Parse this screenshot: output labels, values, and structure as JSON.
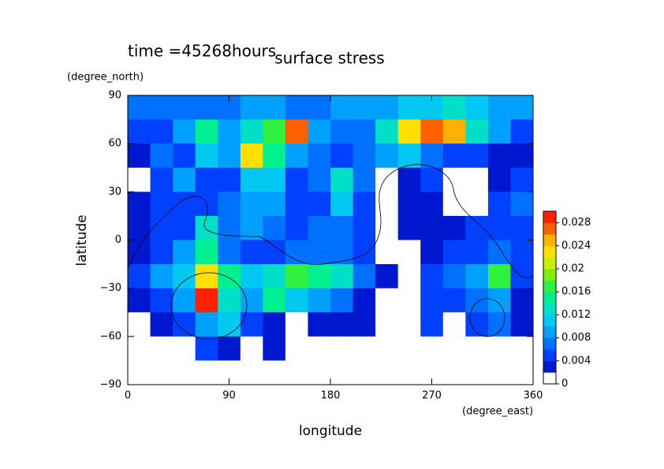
{
  "chart_data": {
    "type": "contour",
    "title": "surface stress",
    "annotation": "time =45268hours",
    "xlabel": "longitude",
    "ylabel": "latitude",
    "xunit": "(degree_east)",
    "yunit": "(degree_north)",
    "xlim": [
      0,
      360
    ],
    "xticks": [
      0,
      90,
      180,
      270,
      360
    ],
    "ylim": [
      -90,
      90
    ],
    "yticks": [
      {
        "value": -90,
        "label": "−90"
      },
      {
        "value": -60,
        "label": "−60"
      },
      {
        "value": -30,
        "label": "−30"
      },
      0,
      30,
      60,
      90
    ],
    "x": [
      10,
      30,
      50,
      70,
      90,
      110,
      130,
      150,
      170,
      190,
      210,
      230,
      250,
      270,
      290,
      310,
      330,
      350
    ],
    "y": [
      82.5,
      67.5,
      52.5,
      37.5,
      22.5,
      7.5,
      -7.5,
      -22.5,
      -37.5,
      -52.5,
      -67.5,
      -82.5
    ],
    "z": [
      [
        0.007,
        0.007,
        0.006,
        0.006,
        0.007,
        0.008,
        0.008,
        0.007,
        0.007,
        0.008,
        0.008,
        0.009,
        0.01,
        0.011,
        0.012,
        0.01,
        0.009,
        0.008
      ],
      [
        0.004,
        0.005,
        0.008,
        0.014,
        0.008,
        0.012,
        0.016,
        0.026,
        0.008,
        0.006,
        0.007,
        0.012,
        0.022,
        0.026,
        0.024,
        0.012,
        0.008,
        0.005
      ],
      [
        0.003,
        0.006,
        0.005,
        0.01,
        0.008,
        0.022,
        0.014,
        0.008,
        0.006,
        0.004,
        0.006,
        0.008,
        0.01,
        0.006,
        0.004,
        0.005,
        0.003,
        0.002
      ],
      [
        0.001,
        0.004,
        0.008,
        0.005,
        0.005,
        0.01,
        0.01,
        0.004,
        0.006,
        0.012,
        0.006,
        0.001,
        0.003,
        0.004,
        0.001,
        0.001,
        0.003,
        0.004
      ],
      [
        0.002,
        0.004,
        0.005,
        0.004,
        0.006,
        0.008,
        0.008,
        0.005,
        0.005,
        0.01,
        0.004,
        0.001,
        0.002,
        0.003,
        0.001,
        0.001,
        0.004,
        0.006
      ],
      [
        0.003,
        0.004,
        0.005,
        0.012,
        0.006,
        0.008,
        0.006,
        0.005,
        0.006,
        0.006,
        0.004,
        0.001,
        0.002,
        0.003,
        0.002,
        0.004,
        0.005,
        0.004
      ],
      [
        0.003,
        0.005,
        0.008,
        0.014,
        0.006,
        0.005,
        0.005,
        0.006,
        0.007,
        0.006,
        0.005,
        0.001,
        0.001,
        0.003,
        0.004,
        0.005,
        0.006,
        0.004
      ],
      [
        0.005,
        0.008,
        0.01,
        0.022,
        0.014,
        0.01,
        0.012,
        0.016,
        0.014,
        0.012,
        0.006,
        0.002,
        0.001,
        0.005,
        0.006,
        0.008,
        0.016,
        0.005
      ],
      [
        0.002,
        0.004,
        0.008,
        0.03,
        0.012,
        0.008,
        0.014,
        0.01,
        0.008,
        0.006,
        0.003,
        0.001,
        0.001,
        0.004,
        0.005,
        0.006,
        0.008,
        0.003
      ],
      [
        0.001,
        0.002,
        0.004,
        0.008,
        0.01,
        0.004,
        0.002,
        0.001,
        0.002,
        0.003,
        0.002,
        0.001,
        0.001,
        0.004,
        0.001,
        0.004,
        0.006,
        0.002
      ],
      [
        0,
        0,
        0.001,
        0.004,
        0.003,
        0.001,
        0.003,
        0.001,
        0,
        0,
        0,
        0,
        0,
        0,
        0,
        0,
        0,
        0
      ],
      [
        0,
        0,
        0,
        0,
        0,
        0,
        0,
        0,
        0,
        0,
        0,
        0,
        0,
        0,
        0,
        0,
        0,
        0
      ]
    ],
    "levels": [
      0,
      0.002,
      0.004,
      0.006,
      0.008,
      0.01,
      0.012,
      0.014,
      0.016,
      0.018,
      0.02,
      0.022,
      0.024,
      0.026,
      0.028,
      0.03
    ],
    "colors": [
      "#ffffff",
      "#0018d0",
      "#0040ff",
      "#0070ff",
      "#00a0ff",
      "#00c8f0",
      "#00e0c8",
      "#00f090",
      "#30f040",
      "#80f000",
      "#c8f000",
      "#ffe000",
      "#ffb000",
      "#ff6000",
      "#ff2000"
    ],
    "clim": [
      0,
      0.03
    ],
    "cticks": [
      0,
      0.004,
      0.008,
      0.012,
      0.016,
      0.02,
      0.024,
      0.028
    ]
  }
}
